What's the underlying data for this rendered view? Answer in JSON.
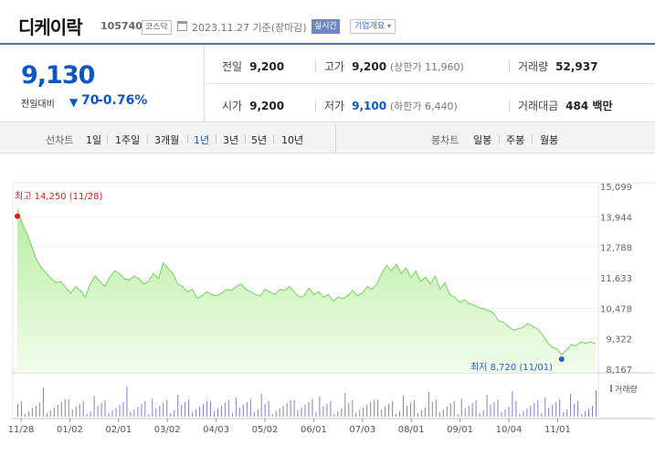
{
  "header": {
    "name": "디케이락",
    "code": "105740",
    "market": "코스닥",
    "date_text": "2023.11.27 기준(장마감)",
    "realtime_label": "실시간",
    "company_label": "기업개요"
  },
  "summary": {
    "price": "9,130",
    "change_label": "전일대비",
    "change_arrow": "▼",
    "change_value": "70",
    "change_rate": "-0.76%",
    "prev_label": "전일",
    "prev_value": "9,200",
    "high_label": "고가",
    "high_value": "9,200",
    "upper_limit": "(상한가 11,960)",
    "volume_label": "거래량",
    "volume_value": "52,937",
    "open_label": "시가",
    "open_value": "9,200",
    "low_label": "저가",
    "low_value": "9,100",
    "lower_limit": "(하한가 6,440)",
    "amount_label": "거래대금",
    "amount_value": "484 백만"
  },
  "toolbar": {
    "line_label": "선차트",
    "periods": [
      "1일",
      "1주일",
      "3개월",
      "1년",
      "3년",
      "5년",
      "10년"
    ],
    "active_period": "1년",
    "candle_label": "봉차트",
    "candles": [
      "일봉",
      "주봉",
      "월봉"
    ]
  },
  "colors": {
    "price_blue": "#0a57c2",
    "line_green": "#7bd66b",
    "high_red": "#d7181f",
    "volume_purple": "#8c7cc0"
  },
  "chart_data": {
    "type": "area",
    "y_ticks": [
      "15,099",
      "13,944",
      "12,788",
      "11,633",
      "10,478",
      "9,322",
      "8,167"
    ],
    "ylim": [
      8167,
      15099
    ],
    "x_ticks": [
      "11/28",
      "01/02",
      "02/01",
      "03/02",
      "04/03",
      "05/02",
      "06/01",
      "07/03",
      "08/01",
      "09/01",
      "10/04",
      "11/01"
    ],
    "max_label": "최고 14,250 (11/28)",
    "min_label": "최저 8,720 (11/01)",
    "volume_label": "거래량",
    "series": [
      {
        "values": [
          14250,
          13700,
          13300,
          12800,
          12300,
          12000,
          11800,
          11600,
          11450,
          11500,
          11250,
          11050,
          11300,
          11150,
          10900,
          11400,
          11700,
          11500,
          11300,
          11650,
          11900,
          11800,
          11600,
          11550,
          11700,
          11600,
          11400,
          11500,
          11800,
          11600,
          12200,
          12000,
          11800,
          11400,
          11300,
          11100,
          11200,
          10850,
          10950,
          11100,
          11000,
          10950,
          11050,
          11200,
          11150,
          11300,
          11400,
          11200,
          11100,
          11000,
          10950,
          11200,
          11100,
          11000,
          11200,
          11150,
          11300,
          11100,
          10900,
          10950,
          11250,
          11000,
          11100,
          10900,
          11000,
          10750,
          10900,
          10850,
          10950,
          11150,
          10950,
          11050,
          11300,
          11200,
          11400,
          11800,
          12100,
          11900,
          12150,
          11800,
          12000,
          11650,
          11900,
          11500,
          11650,
          11400,
          11700,
          11200,
          11450,
          11000,
          10900,
          10700,
          10800,
          10650,
          10600,
          10500,
          10450,
          10400,
          10300,
          10000,
          9950,
          9800,
          9650,
          9700,
          9750,
          9900,
          9800,
          9700,
          9500,
          9200,
          9000,
          8950,
          8720,
          8900,
          9100,
          9050,
          9200,
          9150,
          9200,
          9130
        ]
      }
    ]
  }
}
